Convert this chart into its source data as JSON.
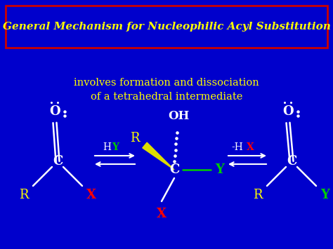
{
  "bg_color": "#0000CC",
  "title_text": "General Mechanism for Nucleophilic Acyl Substitution",
  "title_color": "#FFFF00",
  "title_box_edgecolor": "#CC0000",
  "subtitle_line1": "involves formation and dissociation",
  "subtitle_line2": "of a tetrahedral intermediate",
  "subtitle_color": "#FFFF00",
  "white": "#FFFFFF",
  "yellow": "#FFFF00",
  "red": "#FF0000",
  "green": "#00CC00",
  "fig_w": 4.74,
  "fig_h": 3.55,
  "dpi": 100
}
